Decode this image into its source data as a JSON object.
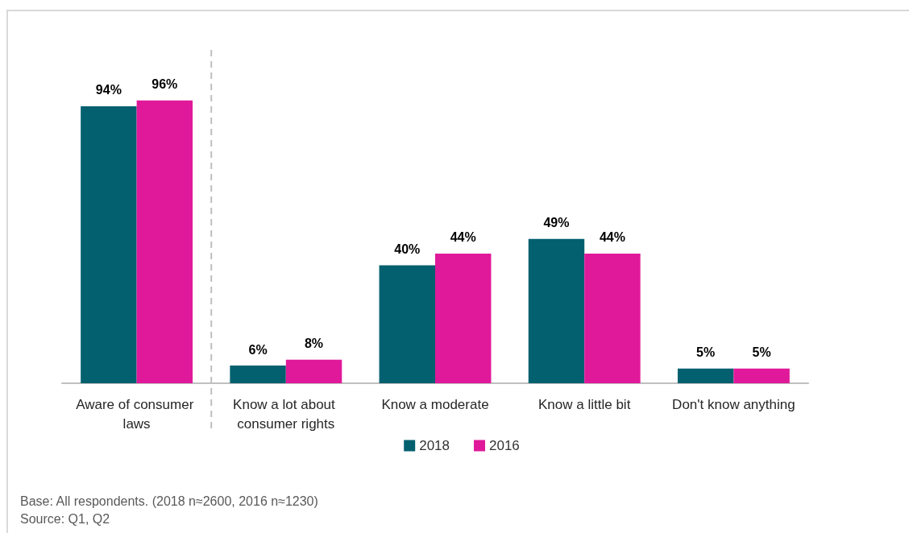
{
  "chart_data": {
    "type": "bar",
    "categories": [
      "Aware of consumer laws",
      "Know a lot about consumer rights",
      "Know a moderate",
      "Know a little bit",
      "Don't know anything"
    ],
    "series": [
      {
        "name": "2018",
        "color": "#03606f",
        "values": [
          94,
          6,
          40,
          49,
          5
        ],
        "value_labels": [
          "94%",
          "6%",
          "40%",
          "49%",
          "5%"
        ]
      },
      {
        "name": "2016",
        "color": "#e0199a",
        "values": [
          96,
          8,
          44,
          44,
          5
        ],
        "value_labels": [
          "96%",
          "8%",
          "44%",
          "44%",
          "5%"
        ]
      }
    ],
    "legend": "bottom",
    "annotations": [
      "Base: All respondents. (2018 n≈2600, 2016 n≈1230)",
      "Source: Q1, Q2"
    ]
  }
}
